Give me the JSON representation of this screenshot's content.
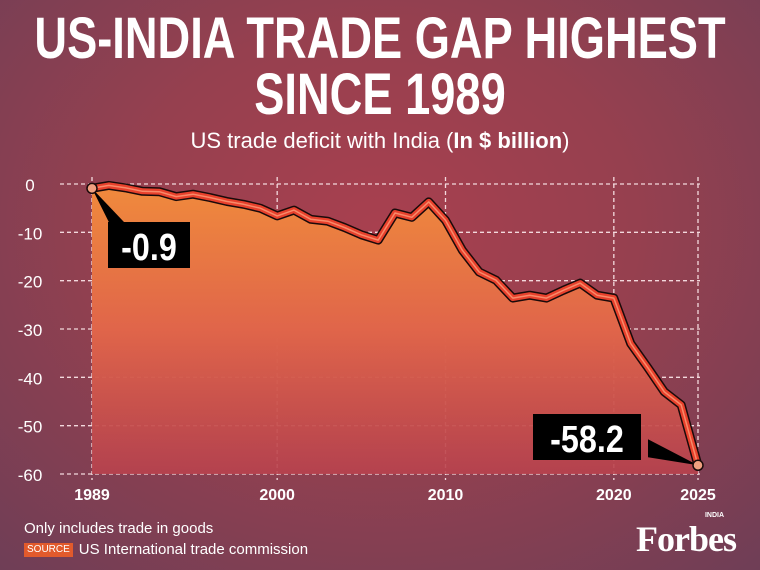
{
  "title_line1": "US-INDIA TRADE GAP HIGHEST",
  "title_line2": "SINCE 1989",
  "subtitle_main": "US trade deficit with India (",
  "subtitle_bold": "In $ billion",
  "subtitle_end": ")",
  "footnote": "Only includes trade in goods",
  "source_label": "SOURCE",
  "source_text": "US International trade commission",
  "logo": {
    "text": "Forbes",
    "sub": "INDIA"
  },
  "colors": {
    "line": "#e8412c",
    "fill_top": "#f08a3c",
    "fill_bottom": "#b8424e",
    "background": "#96404f"
  },
  "chart_data": {
    "type": "area",
    "title": "US trade deficit with India",
    "ylabel": "In $ billion",
    "ylim": [
      -60,
      0
    ],
    "yticks": [
      0,
      -10,
      -20,
      -30,
      -40,
      -50,
      -60
    ],
    "xticks": [
      1989,
      2000,
      2010,
      2020,
      2025
    ],
    "grid": true,
    "x": [
      1989,
      1990,
      1991,
      1992,
      1993,
      1994,
      1995,
      1996,
      1997,
      1998,
      1999,
      2000,
      2001,
      2002,
      2003,
      2004,
      2005,
      2006,
      2007,
      2008,
      2009,
      2010,
      2011,
      2012,
      2013,
      2014,
      2015,
      2016,
      2017,
      2018,
      2019,
      2020,
      2021,
      2022,
      2023,
      2024,
      2025
    ],
    "values": [
      -0.9,
      -0.3,
      -0.8,
      -1.5,
      -1.6,
      -2.6,
      -2.1,
      -2.8,
      -3.6,
      -4.2,
      -5.0,
      -6.6,
      -5.4,
      -7.3,
      -7.7,
      -9.0,
      -10.5,
      -11.6,
      -6.0,
      -6.9,
      -3.7,
      -7.5,
      -13.7,
      -18.2,
      -19.9,
      -23.6,
      -23.0,
      -23.6,
      -22.0,
      -20.5,
      -23.0,
      -23.6,
      -33.0,
      -37.9,
      -43.0,
      -45.7,
      -58.2
    ],
    "annotations": [
      {
        "x": 1989,
        "label": "-0.9"
      },
      {
        "x": 2025,
        "label": "-58.2"
      }
    ]
  }
}
